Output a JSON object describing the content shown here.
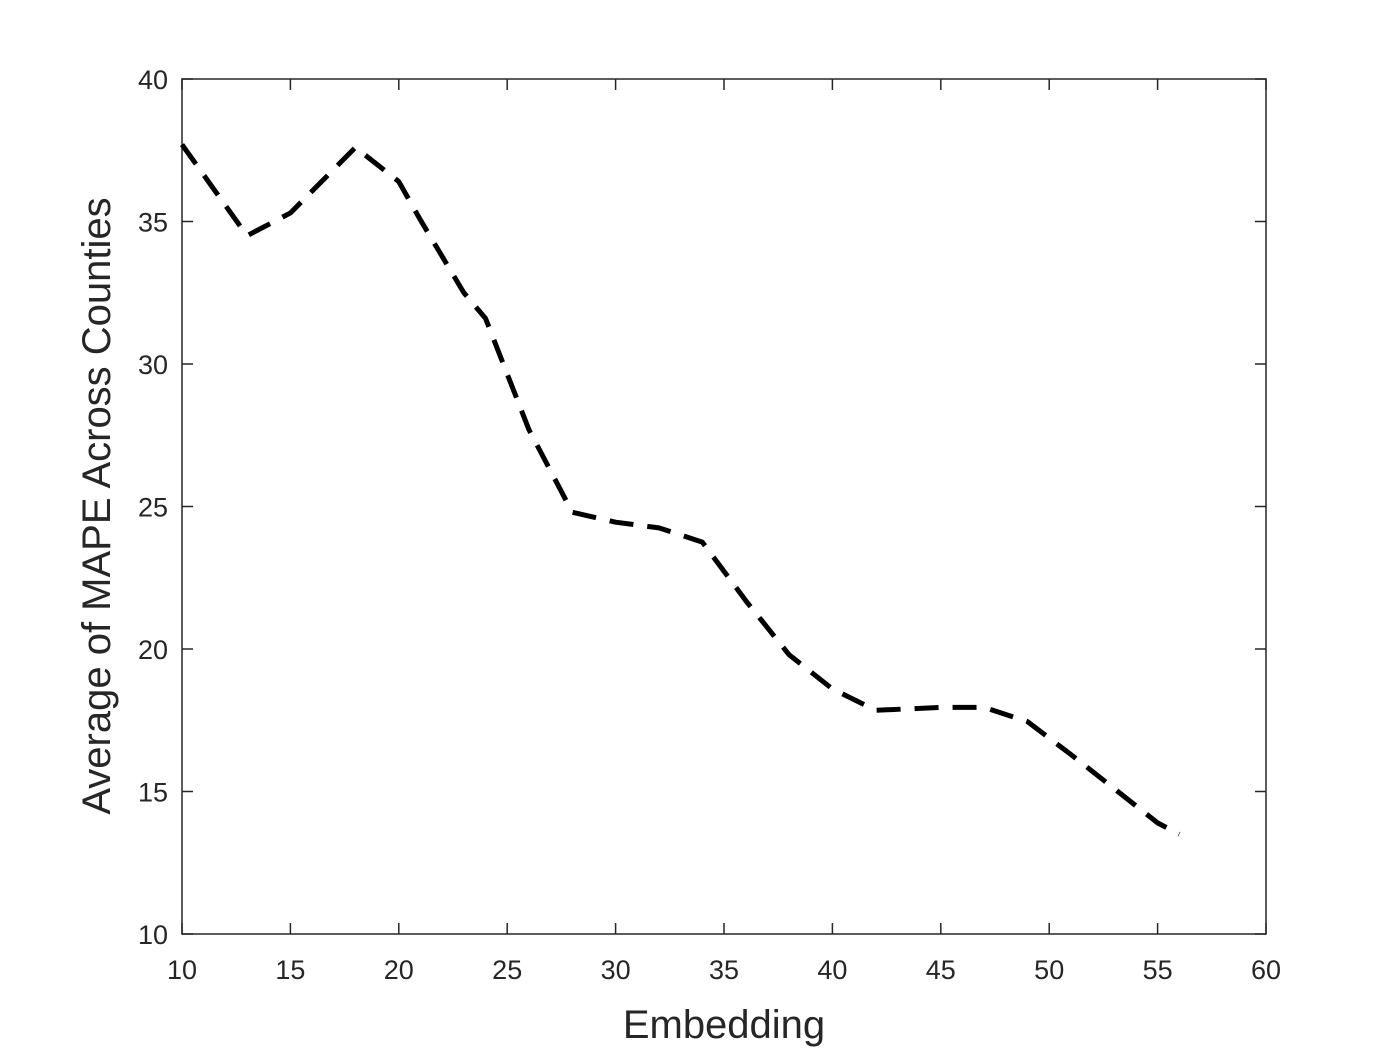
{
  "chart_data": {
    "type": "line",
    "x_label": "Embedding",
    "y_label": "Average of MAPE Across Counties",
    "x": [
      10,
      13,
      15,
      18,
      20,
      21,
      23,
      24,
      26,
      28,
      30,
      32,
      34,
      36,
      38,
      40,
      42,
      45,
      47,
      49,
      51,
      53,
      55,
      56
    ],
    "series": [
      {
        "color": "#000000",
        "values": [
          37.7,
          34.5,
          35.3,
          37.6,
          36.4,
          35.05,
          32.5,
          31.6,
          27.7,
          24.8,
          24.45,
          24.25,
          23.75,
          21.7,
          19.8,
          18.6,
          17.85,
          17.95,
          17.95,
          17.45,
          16.3,
          15.1,
          13.9,
          13.5
        ]
      }
    ],
    "xlim": [
      10,
      60
    ],
    "xticks": [
      10,
      15,
      20,
      25,
      30,
      35,
      40,
      45,
      50,
      55,
      60
    ],
    "ylim": [
      10,
      40
    ],
    "yticks": [
      10,
      15,
      20,
      25,
      30,
      35,
      40
    ],
    "grid": false
  }
}
